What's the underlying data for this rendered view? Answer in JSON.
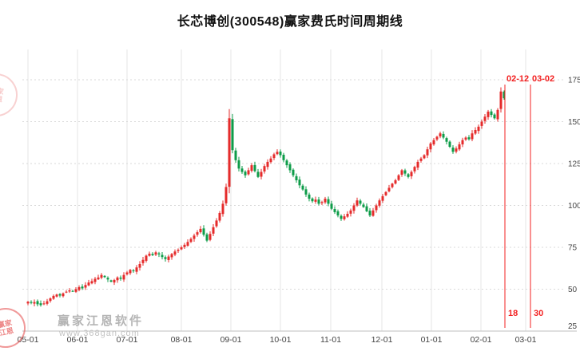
{
  "title": "长芯博创(300548)赢家费氏时间周期线",
  "watermark": {
    "brand": "赢家江恩软件",
    "url": "www.368gan.com",
    "seal_line1": "赢家",
    "seal_line2": "江恩"
  },
  "cycle": {
    "top_labels": [
      "02-12",
      "03-02"
    ],
    "bottom_labels": [
      "18",
      "30"
    ]
  },
  "colors": {
    "up": "#e52b2b",
    "down": "#0e9c49",
    "cycle": "#f32222",
    "grid": "#d9d9d9",
    "grid_month": "#e6e6e6",
    "axis_line": "#bfbfbf",
    "axis_text": "#444444",
    "title_text": "#111111"
  },
  "chart_data": {
    "type": "candlestick",
    "title": "长芯博创(300548)赢家费氏时间周期线",
    "symbol": "300548",
    "stock_name": "长芯博创",
    "x_tick_labels": [
      "05-01",
      "06-01",
      "07-01",
      "08-01",
      "09-01",
      "10-01",
      "11-01",
      "12-01",
      "01-01",
      "02-01",
      "03-01"
    ],
    "y_tick_labels": [
      175,
      150,
      125,
      100,
      75,
      50,
      25
    ],
    "y_range": [
      25,
      175
    ],
    "series_note": "approximate close price per bar, May through Feb-12; open of each bar = previous close",
    "closes": [
      42.5,
      41.8,
      42.3,
      41,
      40.5,
      41.5,
      42.8,
      44.5,
      46,
      46.8,
      46.2,
      47.5,
      48.5,
      49.3,
      48.7,
      50,
      51.2,
      50.5,
      52.5,
      54,
      54.8,
      56.2,
      57,
      58.5,
      57.2,
      55.8,
      54.5,
      55.5,
      57,
      56.2,
      58.5,
      60,
      61.5,
      60.8,
      63,
      65,
      67.5,
      70,
      71.2,
      70.3,
      72,
      70.8,
      69.2,
      68,
      69.5,
      71,
      72.5,
      73.5,
      75,
      76.5,
      78.2,
      80,
      82,
      84,
      86,
      82.5,
      79,
      83,
      87,
      91,
      95.5,
      101,
      111,
      152,
      133,
      127,
      122,
      120,
      118,
      121,
      124,
      120.5,
      117,
      120,
      123.5,
      126,
      128,
      130.5,
      132,
      130,
      127,
      124,
      121,
      118,
      115,
      112,
      109.5,
      106.5,
      104,
      102.5,
      103.5,
      101,
      102,
      104,
      101,
      98,
      96,
      94,
      92,
      93.5,
      95,
      97,
      100,
      103,
      101,
      99,
      96.5,
      94,
      97,
      100,
      103,
      105.5,
      108,
      110.5,
      113,
      115,
      118,
      121,
      119,
      117,
      120,
      123,
      126,
      128,
      130,
      133.5,
      137,
      139,
      141,
      143,
      140.5,
      138,
      135,
      132,
      134,
      136.5,
      139,
      140.5,
      139.5,
      143,
      145,
      147,
      150,
      153,
      156,
      154,
      152,
      157,
      168,
      164
    ],
    "cycle_lines": [
      {
        "date": "02-12",
        "count_label": "18"
      },
      {
        "date": "03-02",
        "count_label": "30"
      }
    ]
  }
}
